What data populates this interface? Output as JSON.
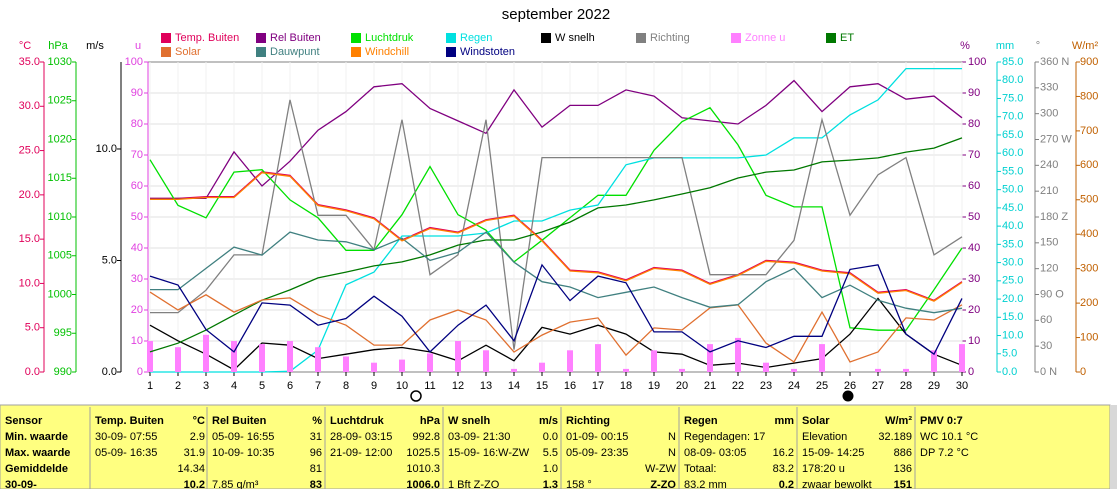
{
  "chart_data": {
    "type": "line",
    "title": "september 2022",
    "x": [
      1,
      2,
      3,
      4,
      5,
      6,
      7,
      8,
      9,
      10,
      11,
      12,
      13,
      14,
      15,
      16,
      17,
      18,
      19,
      20,
      21,
      22,
      23,
      24,
      25,
      26,
      27,
      28,
      29,
      30
    ],
    "xlim": [
      1,
      30
    ],
    "grid": true,
    "axes": [
      {
        "label": "°C",
        "side": "left",
        "color": "#e0005a",
        "lim": [
          0,
          35
        ],
        "ticks": [
          {
            "value": 0,
            "label": "0.0"
          },
          {
            "value": 5,
            "label": "5.0"
          },
          {
            "value": 10,
            "label": "10.0"
          },
          {
            "value": 15,
            "label": "15.0"
          },
          {
            "value": 20,
            "label": "20.0"
          },
          {
            "value": 25,
            "label": "25.0"
          },
          {
            "value": 30,
            "label": "30.0"
          },
          {
            "value": 35,
            "label": "35.0"
          }
        ]
      },
      {
        "label": "hPa",
        "side": "left",
        "color": "#00c000",
        "lim": [
          990,
          1030
        ],
        "ticks": [
          990,
          995,
          1000,
          1005,
          1010,
          1015,
          1020,
          1025,
          1030
        ]
      },
      {
        "label": "m/s",
        "side": "left",
        "color": "#000000",
        "lim": [
          0,
          13.9
        ],
        "ticks": [
          {
            "value": 0,
            "label": "0.0"
          },
          {
            "value": 5,
            "label": "5.0"
          },
          {
            "value": 10,
            "label": "10.0"
          }
        ]
      },
      {
        "label": "u",
        "side": "left",
        "color": "#e040e0",
        "lim": [
          0,
          100
        ],
        "ticks": [
          0,
          10,
          20,
          30,
          40,
          50,
          60,
          70,
          80,
          90,
          100
        ]
      },
      {
        "label": "%",
        "side": "right",
        "color": "#800080",
        "lim": [
          0,
          100
        ],
        "ticks": [
          0,
          10,
          20,
          30,
          40,
          50,
          60,
          70,
          80,
          90,
          100
        ]
      },
      {
        "label": "mm",
        "side": "right",
        "color": "#00d0d0",
        "lim": [
          0,
          85
        ],
        "ticks": [
          {
            "value": 0,
            "label": "0.0"
          },
          {
            "value": 5,
            "label": "5.0"
          },
          {
            "value": 10,
            "label": "10.0"
          },
          {
            "value": 15,
            "label": "15.0"
          },
          {
            "value": 20,
            "label": "20.0"
          },
          {
            "value": 25,
            "label": "25.0"
          },
          {
            "value": 30,
            "label": "30.0"
          },
          {
            "value": 35,
            "label": "35.0"
          },
          {
            "value": 40,
            "label": "40.0"
          },
          {
            "value": 45,
            "label": "45.0"
          },
          {
            "value": 50,
            "label": "50.0"
          },
          {
            "value": 55,
            "label": "55.0"
          },
          {
            "value": 60,
            "label": "60.0"
          },
          {
            "value": 65,
            "label": "65.0"
          },
          {
            "value": 70,
            "label": "70.0"
          },
          {
            "value": 75,
            "label": "75.0"
          },
          {
            "value": 80,
            "label": "80.0"
          },
          {
            "value": 85,
            "label": "85.0"
          }
        ]
      },
      {
        "label": "°",
        "side": "right",
        "color": "#808080",
        "lim": [
          0,
          360
        ],
        "ticks": [
          {
            "value": 0,
            "label": "0 N"
          },
          30,
          60,
          {
            "value": 90,
            "label": "90 O"
          },
          120,
          150,
          {
            "value": 180,
            "label": "180 Z"
          },
          210,
          240,
          {
            "value": 270,
            "label": "270 W"
          },
          300,
          330,
          {
            "value": 360,
            "label": "360 N"
          }
        ]
      },
      {
        "label": "W/m²",
        "side": "right",
        "color": "#c06000",
        "lim": [
          0,
          900
        ],
        "ticks": [
          0,
          100,
          200,
          300,
          400,
          500,
          600,
          700,
          800,
          900
        ]
      }
    ],
    "series": [
      {
        "name": "Temp. Buiten",
        "color": "#e0005a",
        "axis": 0,
        "values": [
          19.6,
          19.6,
          19.8,
          19.8,
          22.6,
          22.2,
          18.9,
          18.3,
          17.4,
          14.9,
          16.3,
          15.8,
          17.2,
          17.7,
          14.9,
          11.5,
          11.3,
          10.4,
          11.8,
          11.5,
          10.0,
          11.0,
          12.6,
          12.4,
          11.5,
          11.2,
          9.0,
          9.3,
          8.1,
          10.2
        ]
      },
      {
        "name": "Rel Buiten",
        "color": "#800080",
        "axis": 4,
        "values": [
          56,
          56,
          56,
          71,
          60,
          68,
          78,
          84,
          92,
          93,
          85,
          81,
          77,
          91,
          79,
          86,
          86,
          91,
          89,
          82,
          81,
          80,
          86,
          94,
          84,
          92,
          93,
          88,
          89,
          82
        ]
      },
      {
        "name": "Luchtdruk",
        "color": "#00e000",
        "axis": 1,
        "values": [
          1017.4,
          1011.5,
          1009.9,
          1015.8,
          1016.1,
          1012.2,
          1009.9,
          1005.7,
          1005.7,
          1010.3,
          1016.5,
          1010.3,
          1008.3,
          1004.2,
          1007.0,
          1009.9,
          1012.8,
          1012.8,
          1018.6,
          1022.3,
          1024.1,
          1019.3,
          1012.8,
          1011.3,
          1011.3,
          995.7,
          995.4,
          995.4,
          1000.6,
          1006.0
        ]
      },
      {
        "name": "Regen",
        "color": "#00e0e0",
        "axis": 5,
        "values": [
          0,
          0,
          0,
          0,
          0,
          0.2,
          6.0,
          23.9,
          27.4,
          37.3,
          37.3,
          37.3,
          38.1,
          41.4,
          41.4,
          44.4,
          45.8,
          56.8,
          58.7,
          58.7,
          58.7,
          58.7,
          59.5,
          64.2,
          64.2,
          70.5,
          74.6,
          83.2,
          83.2,
          83.2
        ]
      },
      {
        "name": "W snelh",
        "color": "#000000",
        "axis": 2,
        "values": [
          2.1,
          1.4,
          0.8,
          0.1,
          1.3,
          1.2,
          0.6,
          0.8,
          1.0,
          1.1,
          0.9,
          0.5,
          1.2,
          0.5,
          2.0,
          1.7,
          2.1,
          1.7,
          0.9,
          0.8,
          0.3,
          0.4,
          0.2,
          0.4,
          0.6,
          1.7,
          3.3,
          1.7,
          0.8,
          0.3
        ]
      },
      {
        "name": "Richting",
        "color": "#808080",
        "axis": 6,
        "values": [
          69,
          69,
          95,
          136,
          136,
          316,
          182,
          182,
          142,
          293,
          113,
          136,
          293,
          26,
          249,
          249,
          249,
          249,
          249,
          249,
          113,
          113,
          113,
          153,
          293,
          182,
          229,
          249,
          136,
          157
        ]
      },
      {
        "name": "Zonne u",
        "color": "#ff80ff",
        "axis": 3,
        "kind": "bar",
        "values": [
          10,
          8,
          12,
          10,
          9,
          10,
          8,
          5,
          3,
          4,
          6,
          10,
          7,
          1,
          3,
          7,
          9,
          1,
          7,
          1,
          9,
          11,
          3,
          1,
          9,
          0,
          1,
          1,
          7,
          9
        ]
      },
      {
        "name": "ET",
        "color": "#007800",
        "axis": 5,
        "values": [
          5.5,
          7.9,
          11.5,
          15.6,
          19.7,
          22.5,
          25.8,
          27.4,
          29.1,
          30.2,
          32.1,
          34.8,
          36.2,
          36.2,
          38.4,
          41.1,
          45.0,
          45.8,
          47.2,
          48.8,
          50.5,
          53.2,
          54.8,
          55.4,
          57.6,
          58.1,
          58.7,
          60.3,
          61.4,
          64.2
        ]
      },
      {
        "name": "Solar",
        "color": "#e07030",
        "axis": 7,
        "values": [
          232,
          180,
          224,
          174,
          209,
          215,
          166,
          136,
          78,
          78,
          151,
          180,
          151,
          58,
          107,
          145,
          157,
          49,
          128,
          122,
          186,
          195,
          84,
          29,
          174,
          29,
          58,
          157,
          151,
          195
        ]
      },
      {
        "name": "Dauwpunt",
        "color": "#408080",
        "axis": 0,
        "values": [
          9.3,
          9.3,
          11.7,
          14.1,
          13.2,
          15.8,
          14.9,
          14.7,
          13.8,
          15.1,
          12.6,
          13.5,
          15.8,
          12.4,
          10.2,
          9.6,
          8.4,
          9.0,
          9.6,
          8.4,
          7.3,
          7.6,
          10.2,
          11.7,
          8.4,
          9.8,
          8.1,
          7.2,
          6.7,
          7.2
        ]
      },
      {
        "name": "Windchill",
        "color": "#ff8000",
        "axis": 0,
        "values": [
          19.5,
          19.5,
          19.7,
          19.7,
          22.5,
          22.1,
          18.8,
          18.2,
          17.3,
          14.8,
          16.2,
          15.7,
          17.1,
          17.6,
          14.8,
          11.4,
          11.2,
          10.3,
          11.7,
          11.4,
          9.9,
          10.9,
          12.5,
          12.3,
          11.4,
          11.1,
          8.9,
          9.2,
          8.0,
          10.1
        ]
      },
      {
        "name": "Windstoten",
        "color": "#000080",
        "axis": 2,
        "values": [
          4.3,
          3.9,
          1.9,
          0.9,
          3.1,
          3.0,
          2.1,
          2.4,
          3.4,
          2.5,
          0.9,
          2.1,
          3.0,
          1.4,
          4.8,
          3.2,
          4.3,
          4.0,
          1.8,
          1.8,
          0.9,
          1.4,
          1.1,
          1.6,
          1.6,
          4.6,
          4.8,
          1.7,
          0.8,
          3.3
        ]
      }
    ]
  },
  "table": {
    "columns": [
      {
        "header": "Sensor",
        "rows": [
          {
            "left": "Min. waarde"
          },
          {
            "left": "Max. waarde"
          },
          {
            "left": "Gemiddelde"
          },
          {
            "left": "30-09-"
          }
        ]
      },
      {
        "header": "Temp. Buiten",
        "unit": "°C",
        "rows": [
          {
            "left": "30-09- 07:55",
            "right": "2.9"
          },
          {
            "left": "05-09- 16:35",
            "right": "31.9"
          },
          {
            "right": "14.34"
          },
          {
            "right": "10.2"
          }
        ]
      },
      {
        "header": "Rel Buiten",
        "unit": "%",
        "rows": [
          {
            "left": "05-09- 16:55",
            "right": "31"
          },
          {
            "left": "10-09- 10:35",
            "right": "96"
          },
          {
            "right": "81"
          },
          {
            "left": "7.85 g/m³",
            "right": "83"
          }
        ]
      },
      {
        "header": "Luchtdruk",
        "unit": "hPa",
        "rows": [
          {
            "left": "28-09- 03:15",
            "right": "992.8"
          },
          {
            "left": "21-09- 12:00",
            "right": "1025.5"
          },
          {
            "right": "1010.3"
          },
          {
            "right": "1006.0"
          }
        ]
      },
      {
        "header": "W snelh",
        "unit": "m/s",
        "rows": [
          {
            "left": "03-09- 21:30",
            "right": "0.0"
          },
          {
            "left": "15-09- 16:W-ZW",
            "right": "5.5"
          },
          {
            "right": "1.0"
          },
          {
            "left": "1 Bft Z-ZO",
            "right": "1.3"
          }
        ]
      },
      {
        "header": "Richting",
        "rows": [
          {
            "left": "01-09- 00:15",
            "right": "N"
          },
          {
            "left": "05-09- 23:35",
            "right": "N"
          },
          {
            "right": "W-ZW"
          },
          {
            "left": "158 °",
            "right": "Z-ZO"
          }
        ]
      },
      {
        "header": "Regen",
        "unit": "mm",
        "rows": [
          {
            "left": "Regendagen: 17"
          },
          {
            "left": "08-09- 03:05",
            "right": "16.2"
          },
          {
            "left": "Totaal:",
            "right": "83.2"
          },
          {
            "left": "83.2 mm",
            "right": "0.2"
          }
        ]
      },
      {
        "header": "Solar",
        "unit": "W/m²",
        "rows": [
          {
            "left": "Elevation",
            "right": "32.189"
          },
          {
            "left": "15-09- 14:25",
            "right": "886"
          },
          {
            "left": "178:20 u",
            "right": "136"
          },
          {
            "left": "zwaar bewolkt",
            "right": "151"
          }
        ]
      },
      {
        "header": "PMV 0:7",
        "rows": [
          {
            "left": "WC 10.1 °C"
          },
          {
            "left": "DP 7.2 °C"
          }
        ]
      }
    ]
  }
}
